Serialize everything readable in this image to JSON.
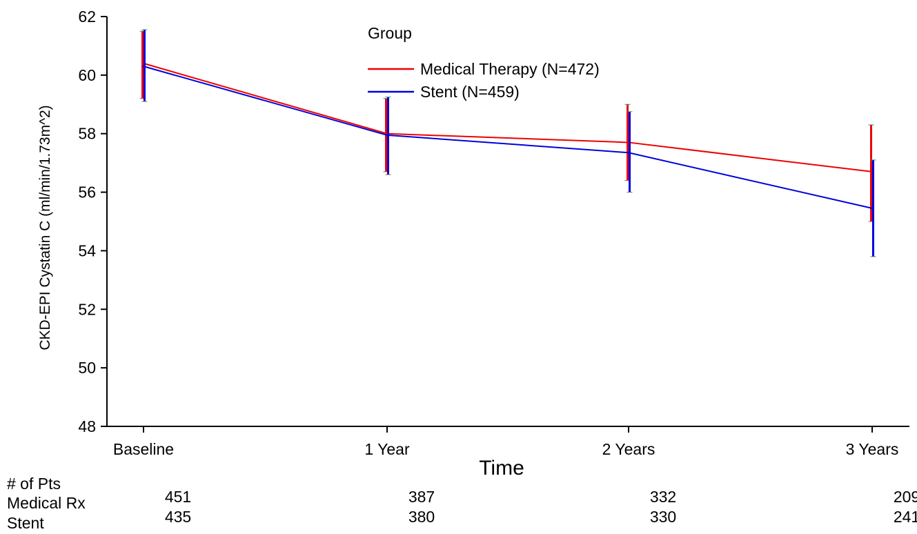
{
  "chart_data": {
    "type": "line",
    "ylabel": "CKD-EPI Cystatin C (ml/min/1.73m^2)",
    "xlabel": "Time",
    "categories": [
      "Baseline",
      "1 Year",
      "2 Years",
      "3 Years"
    ],
    "ylim": [
      48,
      62
    ],
    "yticks": [
      48,
      50,
      52,
      54,
      56,
      58,
      60,
      62
    ],
    "grid": false,
    "legend": {
      "title": "Group",
      "placement": "top-center"
    },
    "series": [
      {
        "name": "Medical Therapy (N=472)",
        "color": "#ee0000",
        "values": [
          60.4,
          58.0,
          57.7,
          56.7
        ],
        "lower": [
          59.2,
          56.7,
          56.4,
          55.0
        ],
        "upper": [
          61.5,
          59.2,
          59.0,
          58.3
        ]
      },
      {
        "name": "Stent (N=459)",
        "color": "#0000dd",
        "values": [
          60.3,
          57.95,
          57.35,
          55.45
        ],
        "lower": [
          59.1,
          56.6,
          56.0,
          53.8
        ],
        "upper": [
          61.55,
          59.25,
          58.75,
          57.1
        ]
      }
    ]
  },
  "patients_table": {
    "header": "# of Pts",
    "rows": [
      {
        "label": "Medical Rx",
        "values": [
          "451",
          "387",
          "332",
          "209"
        ]
      },
      {
        "label": "Stent",
        "values": [
          "435",
          "380",
          "330",
          "241"
        ]
      }
    ]
  }
}
